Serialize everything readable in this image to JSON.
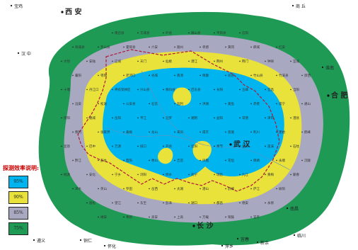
{
  "legend": {
    "title": "探测效率说明:",
    "items": [
      {
        "label": "95%",
        "color": "#00b4ef"
      },
      {
        "label": "90%",
        "color": "#e8e23a"
      },
      {
        "label": "85%",
        "color": "#a8a8c0"
      },
      {
        "label": "75%",
        "color": "#1e9a55"
      }
    ]
  },
  "cities": {
    "xian": "西 安",
    "hefei": "合 肥",
    "wuhan": "武 汉",
    "changsha": "长 沙",
    "hanzhong": "汉 中",
    "shangqiu": "商 丘",
    "huainan": "淮南",
    "linchuan": "临川",
    "yichun": "宜春",
    "xinyu": "新余",
    "pingxiang": "萍乡",
    "tongren": "铜仁",
    "huaihua": "怀化",
    "zunyi": "遵义",
    "baoji": "宝鸡",
    "nanchang": "南昌"
  },
  "counties": [
    "南召县",
    "方城县",
    "叶县",
    "确山县",
    "平舆县",
    "信阳",
    "商城县",
    "罗山县",
    "霍邱县",
    "六安",
    "随州",
    "孝感",
    "黄冈",
    "麻城",
    "红安",
    "大悟",
    "安陆",
    "应城",
    "天门",
    "仙桃",
    "潜江",
    "荆州",
    "荆门",
    "钟祥",
    "宜城",
    "襄阳",
    "枣阳",
    "老河口",
    "谷城",
    "南漳",
    "保康",
    "房县",
    "竹山县",
    "竹溪县",
    "郧西",
    "十堰",
    "丹江口",
    "神农架林区",
    "兴山县",
    "秭归县",
    "巴东县",
    "长阳",
    "五峰",
    "宜昌",
    "当阳",
    "远安",
    "松滋",
    "公安县",
    "石首",
    "监利",
    "洪湖",
    "嘉鱼",
    "赤壁",
    "咸宁",
    "通山",
    "崇阳",
    "通城",
    "岳阳",
    "平江",
    "汨罗",
    "湘阴",
    "益阳",
    "常德",
    "津市",
    "澧县",
    "慈利",
    "张家界",
    "桑植",
    "龙山",
    "来凤",
    "咸丰",
    "恩施",
    "利川",
    "建始",
    "鹤峰",
    "宣恩",
    "巴中",
    "万源",
    "城口",
    "开县",
    "云阳",
    "奉节",
    "巫山",
    "巫溪",
    "石柱",
    "黔江",
    "彭水",
    "酉阳",
    "秀山",
    "吉首",
    "凤凰",
    "花垣",
    "保靖",
    "永顺",
    "沅陵",
    "桃源",
    "安化",
    "宁乡",
    "浏阳",
    "修水",
    "武宁",
    "瑞昌",
    "九江",
    "黄梅",
    "蕲春",
    "浠水",
    "英山",
    "罗田",
    "岳西",
    "太湖",
    "潜山",
    "舒城",
    "庐江",
    "枞阳",
    "宿松",
    "望江",
    "东至",
    "彭泽",
    "湖口",
    "都昌",
    "德安",
    "永修",
    "靖安",
    "奉新",
    "高安",
    "上高",
    "万载",
    "铜鼓",
    "宜丰"
  ],
  "notes": {
    "map_type": "region detection efficiency map"
  }
}
